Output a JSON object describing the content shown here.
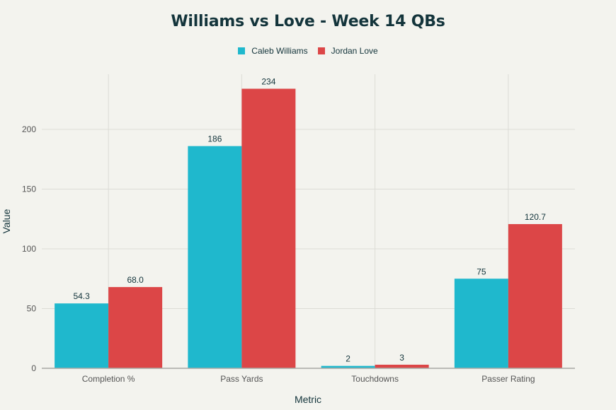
{
  "chart_data": {
    "type": "bar",
    "title": "Williams vs Love - Week 14 QBs",
    "xlabel": "Metric",
    "ylabel": "Value",
    "categories": [
      "Completion %",
      "Pass Yards",
      "Touchdowns",
      "Passer Rating"
    ],
    "series": [
      {
        "name": "Caleb Williams",
        "color": "#1fb8cd",
        "values": [
          54.3,
          186,
          2,
          75
        ],
        "labels": [
          "54.3",
          "186",
          "2",
          "75"
        ]
      },
      {
        "name": "Jordan Love",
        "color": "#dc4647",
        "values": [
          68.0,
          234,
          3,
          120.7
        ],
        "labels": [
          "68.0",
          "234",
          "3",
          "120.7"
        ]
      }
    ],
    "yticks": [
      0,
      50,
      100,
      150,
      200
    ],
    "ylim": [
      0,
      246
    ],
    "grid": true,
    "legend_position": "top-center"
  }
}
